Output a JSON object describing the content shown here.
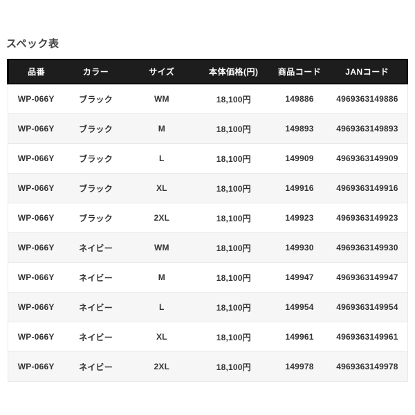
{
  "page": {
    "title": "スペック表"
  },
  "colors": {
    "header_bg": "#1d1d1d",
    "header_text": "#ffffff",
    "row_alt_bg": "#f6f6f6",
    "row_border": "#e9e9e9",
    "cell_text": "#333333",
    "title_text": "#444444"
  },
  "table": {
    "columns": [
      "品番",
      "カラー",
      "サイズ",
      "本体価格(円)",
      "商品コード",
      "JANコード"
    ],
    "rows": [
      {
        "cells": [
          "WP-066Y",
          "ブラック",
          "WM",
          "18,100円",
          "149886",
          "4969363149886"
        ]
      },
      {
        "cells": [
          "WP-066Y",
          "ブラック",
          "M",
          "18,100円",
          "149893",
          "4969363149893"
        ]
      },
      {
        "cells": [
          "WP-066Y",
          "ブラック",
          "L",
          "18,100円",
          "149909",
          "4969363149909"
        ]
      },
      {
        "cells": [
          "WP-066Y",
          "ブラック",
          "XL",
          "18,100円",
          "149916",
          "4969363149916"
        ]
      },
      {
        "cells": [
          "WP-066Y",
          "ブラック",
          "2XL",
          "18,100円",
          "149923",
          "4969363149923"
        ]
      },
      {
        "cells": [
          "WP-066Y",
          "ネイビー",
          "WM",
          "18,100円",
          "149930",
          "4969363149930"
        ]
      },
      {
        "cells": [
          "WP-066Y",
          "ネイビー",
          "M",
          "18,100円",
          "149947",
          "4969363149947"
        ]
      },
      {
        "cells": [
          "WP-066Y",
          "ネイビー",
          "L",
          "18,100円",
          "149954",
          "4969363149954"
        ]
      },
      {
        "cells": [
          "WP-066Y",
          "ネイビー",
          "XL",
          "18,100円",
          "149961",
          "4969363149961"
        ]
      },
      {
        "cells": [
          "WP-066Y",
          "ネイビー",
          "2XL",
          "18,100円",
          "149978",
          "4969363149978"
        ]
      }
    ]
  }
}
